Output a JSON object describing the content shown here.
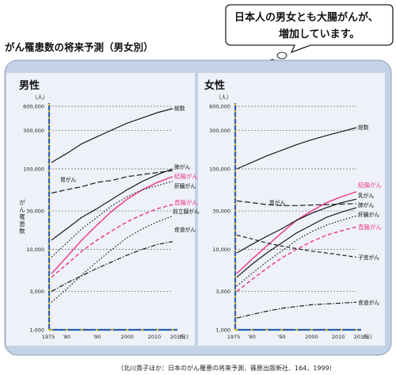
{
  "header": {
    "title": "がん罹患数の将来予測（男女別）",
    "bubble_line1": "日本人の男女とも大腸がんが、",
    "bubble_line2": "増加しています。"
  },
  "source": "（北川貴子ほか：日本のがん罹患の将来予測．篠原出版新社．164，1999）",
  "colors": {
    "panel_bg": "#c3d2e4",
    "plot_bg": "#eef2f8",
    "axis": "#2a5fb0",
    "tick_dot": "#e8c41a",
    "line_dark": "#1a1a1a",
    "line_pink": "#ee3d8f",
    "bubble_border": "#222222"
  },
  "chart_data": [
    {
      "type": "line",
      "panel_title": "男性",
      "unit": "（人）",
      "ylabel": "がん罹患数",
      "scale": "log",
      "ylim": [
        1000,
        600000
      ],
      "y_ticks": [
        1000,
        3000,
        10000,
        30000,
        100000,
        300000,
        600000
      ],
      "y_tick_labels": [
        "1,000",
        "3,000",
        "10,000",
        "30,000",
        "100,000",
        "300,000",
        "600,000"
      ],
      "x_tick_labels": [
        "1975",
        "'80",
        "'90",
        "2000",
        "2010",
        "2015",
        "(年)"
      ],
      "xlim": [
        1975,
        2015
      ],
      "series": [
        {
          "name": "総数",
          "color": "dark",
          "dash": "solid",
          "x": [
            1975,
            1980,
            1985,
            1990,
            1995,
            2000,
            2005,
            2010,
            2015
          ],
          "y": [
            120000,
            155000,
            205000,
            250000,
            305000,
            370000,
            430000,
            500000,
            560000
          ]
        },
        {
          "name": "胃がん",
          "color": "dark",
          "dash": "long",
          "x": [
            1975,
            1980,
            1985,
            1990,
            1995,
            2000,
            2005,
            2010,
            2015
          ],
          "y": [
            50000,
            55000,
            60000,
            68000,
            72000,
            80000,
            85000,
            90000,
            95000
          ]
        },
        {
          "name": "肺がん",
          "color": "dark",
          "dash": "solid",
          "x": [
            1975,
            1980,
            1985,
            1990,
            1995,
            2000,
            2005,
            2010,
            2015
          ],
          "y": [
            13000,
            18000,
            25000,
            32000,
            42000,
            55000,
            70000,
            85000,
            100000
          ]
        },
        {
          "name": "結腸がん",
          "color": "pink",
          "dash": "solid",
          "x": [
            1975,
            1980,
            1985,
            1990,
            1995,
            2000,
            2005,
            2010,
            2015
          ],
          "y": [
            5000,
            8000,
            13000,
            20000,
            30000,
            42000,
            55000,
            68000,
            80000
          ]
        },
        {
          "name": "肝臓がん",
          "color": "dark",
          "dash": "dot",
          "x": [
            1975,
            1980,
            1985,
            1990,
            1995,
            2000,
            2005,
            2010,
            2015
          ],
          "y": [
            8000,
            12000,
            18000,
            25000,
            35000,
            45000,
            55000,
            62000,
            70000
          ]
        },
        {
          "name": "直腸がん",
          "color": "pink",
          "dash": "medium",
          "x": [
            1975,
            1980,
            1985,
            1990,
            1995,
            2000,
            2005,
            2010,
            2015
          ],
          "y": [
            4500,
            6500,
            9500,
            13000,
            17000,
            22000,
            27000,
            32000,
            36000
          ]
        },
        {
          "name": "前立腺がん",
          "color": "dark",
          "dash": "dot",
          "x": [
            1975,
            1980,
            1985,
            1990,
            1995,
            2000,
            2005,
            2010,
            2015
          ],
          "y": [
            2200,
            3200,
            4800,
            7000,
            10000,
            14000,
            18000,
            22000,
            26000
          ]
        },
        {
          "name": "食道がん",
          "color": "dark",
          "dash": "dashdot",
          "x": [
            1975,
            1980,
            1985,
            1990,
            1995,
            2000,
            2005,
            2010,
            2015
          ],
          "y": [
            3000,
            3800,
            4700,
            5800,
            7000,
            8500,
            10000,
            11500,
            12500
          ]
        }
      ]
    },
    {
      "type": "line",
      "panel_title": "女性",
      "unit": "（人）",
      "ylabel": "",
      "scale": "log",
      "ylim": [
        1000,
        600000
      ],
      "y_ticks": [
        1000,
        3000,
        10000,
        30000,
        100000,
        300000,
        600000
      ],
      "y_tick_labels": [
        "1,000",
        "3,000",
        "10,000",
        "30,000",
        "100,000",
        "300,000",
        "600,000"
      ],
      "x_tick_labels": [
        "1975",
        "'80",
        "'90",
        "2000",
        "2010",
        "2015",
        "(年)"
      ],
      "xlim": [
        1975,
        2015
      ],
      "series": [
        {
          "name": "総数",
          "color": "dark",
          "dash": "solid",
          "x": [
            1975,
            1980,
            1985,
            1990,
            1995,
            2000,
            2005,
            2010,
            2015
          ],
          "y": [
            100000,
            120000,
            145000,
            170000,
            200000,
            230000,
            260000,
            290000,
            325000
          ]
        },
        {
          "name": "結腸がん",
          "color": "pink",
          "dash": "solid",
          "x": [
            1975,
            1980,
            1985,
            1990,
            1995,
            2000,
            2005,
            2010,
            2015
          ],
          "y": [
            5000,
            7500,
            11000,
            16000,
            23000,
            30000,
            38000,
            45000,
            52000
          ]
        },
        {
          "name": "乳がん",
          "color": "dark",
          "dash": "solid",
          "x": [
            1975,
            1980,
            1985,
            1990,
            1995,
            2000,
            2005,
            2010,
            2015
          ],
          "y": [
            9000,
            11500,
            14500,
            18000,
            23000,
            28000,
            33000,
            38000,
            42000
          ]
        },
        {
          "name": "胃がん",
          "color": "dark",
          "dash": "long",
          "x": [
            1975,
            1980,
            1985,
            1990,
            1995,
            2000,
            2005,
            2010,
            2015
          ],
          "y": [
            40000,
            38000,
            36000,
            35000,
            35000,
            35500,
            36000,
            36500,
            37000
          ]
        },
        {
          "name": "肺がん",
          "color": "dark",
          "dash": "solid",
          "x": [
            1975,
            1980,
            1985,
            1990,
            1995,
            2000,
            2005,
            2010,
            2015
          ],
          "y": [
            4500,
            6500,
            9000,
            12000,
            16000,
            20000,
            25000,
            29000,
            33000
          ]
        },
        {
          "name": "肝臓がん",
          "color": "dark",
          "dash": "dot",
          "x": [
            1975,
            1980,
            1985,
            1990,
            1995,
            2000,
            2005,
            2010,
            2015
          ],
          "y": [
            3500,
            5000,
            7000,
            9500,
            13000,
            16500,
            20000,
            23000,
            26000
          ]
        },
        {
          "name": "直腸がん",
          "color": "pink",
          "dash": "medium",
          "x": [
            1975,
            1980,
            1985,
            1990,
            1995,
            2000,
            2005,
            2010,
            2015
          ],
          "y": [
            3000,
            4200,
            5800,
            7800,
            10000,
            12500,
            15000,
            17000,
            19000
          ]
        },
        {
          "name": "子宮がん",
          "color": "dark",
          "dash": "medium",
          "x": [
            1975,
            1980,
            1985,
            1990,
            1995,
            2000,
            2005,
            2010,
            2015
          ],
          "y": [
            15000,
            13500,
            12000,
            11000,
            10200,
            9500,
            9000,
            8500,
            8000
          ]
        },
        {
          "name": "食道がん",
          "color": "dark",
          "dash": "dashdot",
          "x": [
            1975,
            1980,
            1985,
            1990,
            1995,
            2000,
            2005,
            2010,
            2015
          ],
          "y": [
            1400,
            1550,
            1700,
            1850,
            1950,
            2050,
            2100,
            2150,
            2200
          ]
        }
      ]
    }
  ]
}
